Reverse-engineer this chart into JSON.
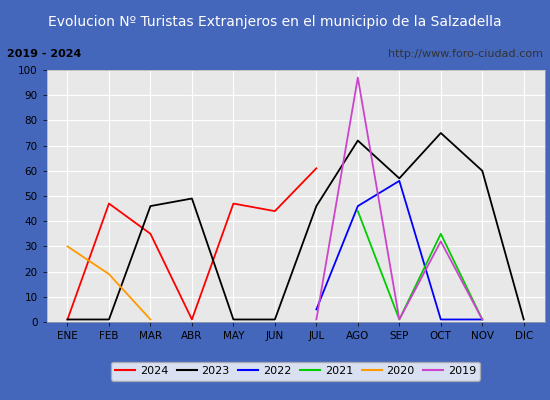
{
  "title": "Evolucion Nº Turistas Extranjeros en el municipio de la Salzadella",
  "subtitle_left": "2019 - 2024",
  "subtitle_right": "http://www.foro-ciudad.com",
  "months": [
    "ENE",
    "FEB",
    "MAR",
    "ABR",
    "MAY",
    "JUN",
    "JUL",
    "AGO",
    "SEP",
    "OCT",
    "NOV",
    "DIC"
  ],
  "series": {
    "2024": {
      "color": "#ff0000",
      "data": [
        1,
        47,
        35,
        1,
        47,
        44,
        61,
        null,
        null,
        null,
        null,
        null
      ]
    },
    "2023": {
      "color": "#000000",
      "data": [
        1,
        1,
        46,
        49,
        1,
        1,
        46,
        72,
        57,
        75,
        60,
        1
      ]
    },
    "2022": {
      "color": "#0000ff",
      "data": [
        null,
        null,
        null,
        null,
        null,
        null,
        5,
        46,
        56,
        1,
        1,
        null
      ]
    },
    "2021": {
      "color": "#00cc00",
      "data": [
        null,
        null,
        null,
        null,
        null,
        null,
        null,
        44,
        1,
        35,
        1,
        null
      ]
    },
    "2020": {
      "color": "#ff9900",
      "data": [
        30,
        19,
        1,
        null,
        null,
        null,
        null,
        null,
        null,
        null,
        null,
        null
      ]
    },
    "2019": {
      "color": "#cc44cc",
      "data": [
        null,
        null,
        null,
        null,
        null,
        null,
        1,
        97,
        1,
        32,
        1,
        null
      ]
    }
  },
  "ylim": [
    0,
    100
  ],
  "yticks": [
    0,
    10,
    20,
    30,
    40,
    50,
    60,
    70,
    80,
    90,
    100
  ],
  "bg_title": "#4466bb",
  "bg_subtitle": "#e0e0e0",
  "bg_plot": "#e8e8e8",
  "grid_color": "#ffffff",
  "border_color": "#4466bb",
  "title_color": "#ffffff",
  "title_fontsize": 10,
  "subtitle_fontsize": 8,
  "axis_fontsize": 7.5,
  "legend_order": [
    "2024",
    "2023",
    "2022",
    "2021",
    "2020",
    "2019"
  ]
}
